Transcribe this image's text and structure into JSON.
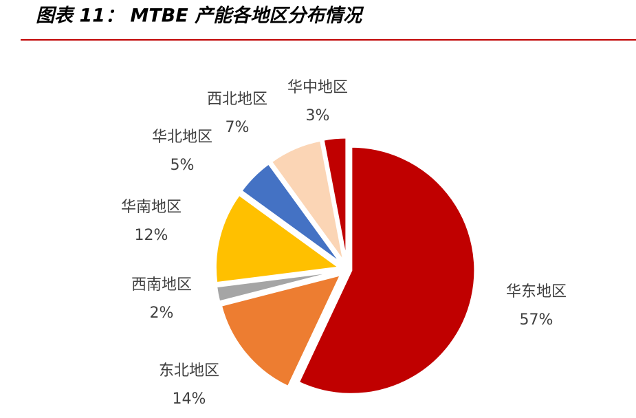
{
  "chart_data": {
    "type": "pie",
    "title": "图表 11： MTBE 产能各地区分布情况",
    "categories": [
      "华东地区",
      "东北地区",
      "西南地区",
      "华南地区",
      "华北地区",
      "西北地区",
      "华中地区"
    ],
    "values": [
      57,
      14,
      2,
      12,
      5,
      7,
      3
    ],
    "value_labels": [
      "57%",
      "14%",
      "2%",
      "12%",
      "5%",
      "7%",
      "3%"
    ],
    "colors": [
      "#c00000",
      "#ed7d31",
      "#a5a5a5",
      "#ffc000",
      "#4472c4",
      "#fbd5b5",
      "#c00000"
    ]
  }
}
